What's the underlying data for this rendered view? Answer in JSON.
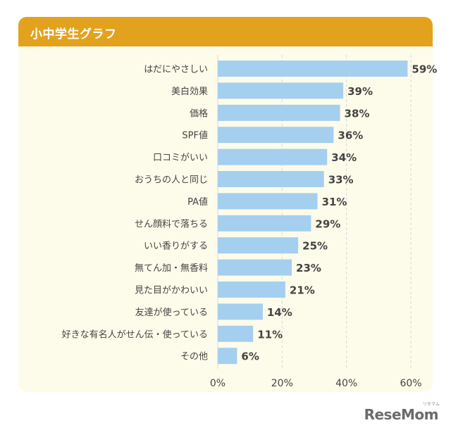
{
  "title": "小中学生グラフ",
  "brand": "ReseMom",
  "brand_sub": "リセマム",
  "colors": {
    "header": "#e3a21e",
    "card": "#fdfcea",
    "bar": "#a5cfee",
    "grid": "#d8d8d8",
    "text": "#444444"
  },
  "chart_data": {
    "type": "bar",
    "orientation": "horizontal",
    "categories": [
      "はだにやさしい",
      "美白効果",
      "価格",
      "SPF値",
      "口コミがいい",
      "おうちの人と同じ",
      "PA値",
      "せん顔料で落ちる",
      "いい香りがする",
      "無てん加・無香料",
      "見た目がかわいい",
      "友達が使っている",
      "好きな有名人がせん伝・使っている",
      "その他"
    ],
    "values": [
      59,
      39,
      38,
      36,
      34,
      33,
      31,
      29,
      25,
      23,
      21,
      14,
      11,
      6
    ],
    "value_labels": [
      "59%",
      "39%",
      "38%",
      "36%",
      "34%",
      "33%",
      "31%",
      "29%",
      "25%",
      "23%",
      "21%",
      "14%",
      "11%",
      "6%"
    ],
    "xlim": [
      0,
      60
    ],
    "xticks": [
      0,
      20,
      40,
      60
    ],
    "xtick_labels": [
      "0%",
      "20%",
      "40%",
      "60%"
    ],
    "grid": true
  }
}
